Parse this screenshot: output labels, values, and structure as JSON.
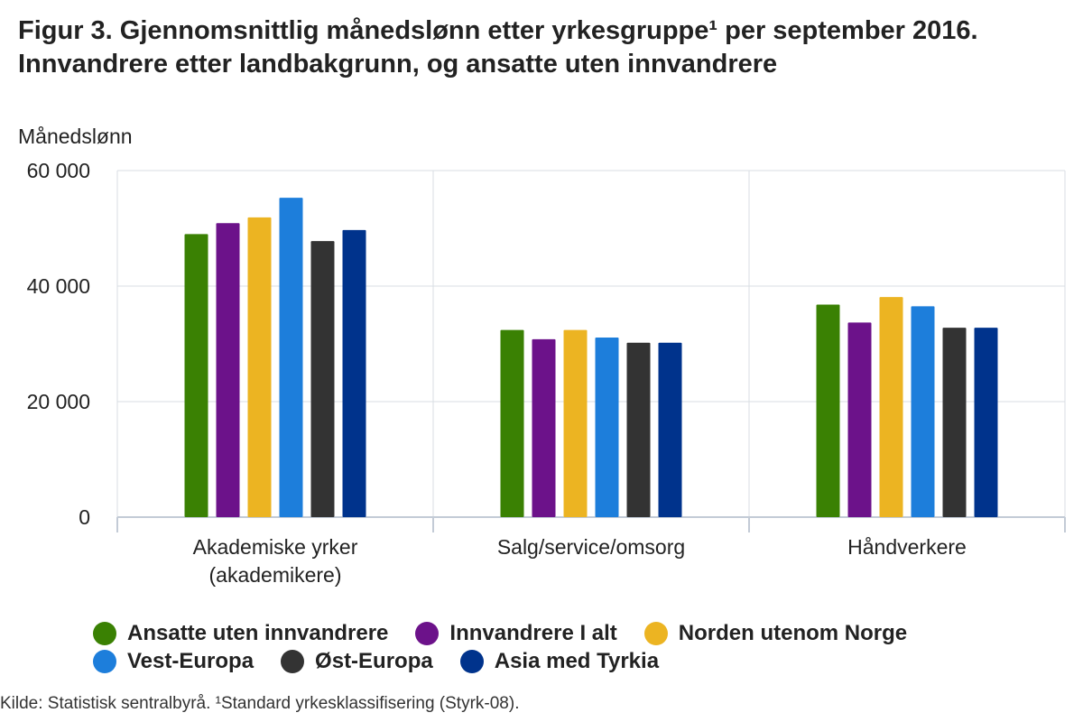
{
  "title": "Figur 3. Gjennomsnittlig månedslønn etter yrkesgruppe¹ per september 2016. Innvandrere etter landbakgrunn, og ansatte uten innvandrere",
  "source": "Kilde: Statistisk sentralbyrå. ¹Standard yrkesklassifisering (Styrk-08).",
  "chart_data": {
    "type": "bar",
    "title": "Figur 3. Gjennomsnittlig månedslønn etter yrkesgruppe¹ per september 2016. Innvandrere etter landbakgrunn, og ansatte uten innvandrere",
    "ylabel": "Månedslønn",
    "xlabel": "",
    "ylim": [
      0,
      60000
    ],
    "yticks": [
      0,
      20000,
      40000,
      60000
    ],
    "ytick_labels": [
      "0",
      "20 000",
      "40 000",
      "60 000"
    ],
    "grid": true,
    "legend_position": "bottom",
    "categories": [
      [
        "Akademiske yrker",
        "(akademikere)"
      ],
      [
        "Salg/service/omsorg"
      ],
      [
        "Håndverkere"
      ]
    ],
    "series": [
      {
        "name": "Ansatte uten innvandrere",
        "color": "#3a8103",
        "values": [
          49000,
          32400,
          36800
        ]
      },
      {
        "name": "Innvandrere I alt",
        "color": "#6c128a",
        "values": [
          50900,
          30800,
          33700
        ]
      },
      {
        "name": "Norden utenom Norge",
        "color": "#ecb422",
        "values": [
          51900,
          32400,
          38100
        ]
      },
      {
        "name": "Vest-Europa",
        "color": "#1d7edb",
        "values": [
          55300,
          31100,
          36500
        ]
      },
      {
        "name": "Øst-Europa",
        "color": "#333333",
        "values": [
          47800,
          30200,
          32800
        ]
      },
      {
        "name": "Asia med Tyrkia",
        "color": "#00338c",
        "values": [
          49700,
          30200,
          32800
        ]
      }
    ]
  },
  "legend_rows": [
    [
      {
        "label": "Ansatte uten innvandrere",
        "color": "#3a8103"
      },
      {
        "label": "Innvandrere I alt",
        "color": "#6c128a"
      },
      {
        "label": "Norden utenom Norge",
        "color": "#ecb422"
      }
    ],
    [
      {
        "label": "Vest-Europa",
        "color": "#1d7edb"
      },
      {
        "label": "Øst-Europa",
        "color": "#333333"
      },
      {
        "label": "Asia med Tyrkia",
        "color": "#00338c"
      }
    ]
  ]
}
